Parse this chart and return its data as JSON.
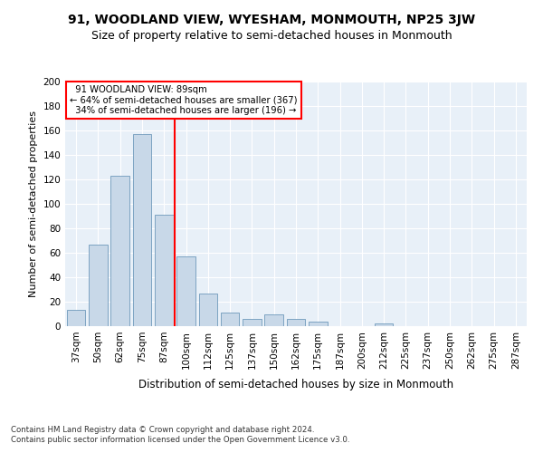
{
  "title": "91, WOODLAND VIEW, WYESHAM, MONMOUTH, NP25 3JW",
  "subtitle": "Size of property relative to semi-detached houses in Monmouth",
  "xlabel": "Distribution of semi-detached houses by size in Monmouth",
  "ylabel": "Number of semi-detached properties",
  "bins": [
    "37sqm",
    "50sqm",
    "62sqm",
    "75sqm",
    "87sqm",
    "100sqm",
    "112sqm",
    "125sqm",
    "137sqm",
    "150sqm",
    "162sqm",
    "175sqm",
    "187sqm",
    "200sqm",
    "212sqm",
    "225sqm",
    "237sqm",
    "250sqm",
    "262sqm",
    "275sqm",
    "287sqm"
  ],
  "values": [
    13,
    67,
    123,
    157,
    91,
    57,
    27,
    11,
    6,
    10,
    6,
    4,
    0,
    0,
    2,
    0,
    0,
    0,
    0,
    0,
    0
  ],
  "bar_color": "#c8d8e8",
  "bar_edge_color": "#5a8ab0",
  "property_label": "91 WOODLAND VIEW: 89sqm",
  "pct_smaller": 64,
  "count_smaller": 367,
  "pct_larger": 34,
  "count_larger": 196,
  "vline_color": "red",
  "annotation_box_color": "red",
  "ylim": [
    0,
    200
  ],
  "yticks": [
    0,
    20,
    40,
    60,
    80,
    100,
    120,
    140,
    160,
    180,
    200
  ],
  "title_fontsize": 10,
  "subtitle_fontsize": 9,
  "xlabel_fontsize": 8.5,
  "ylabel_fontsize": 8,
  "tick_fontsize": 7.5,
  "footer1": "Contains HM Land Registry data © Crown copyright and database right 2024.",
  "footer2": "Contains public sector information licensed under the Open Government Licence v3.0.",
  "background_color": "#e8f0f8",
  "fig_background": "#ffffff"
}
